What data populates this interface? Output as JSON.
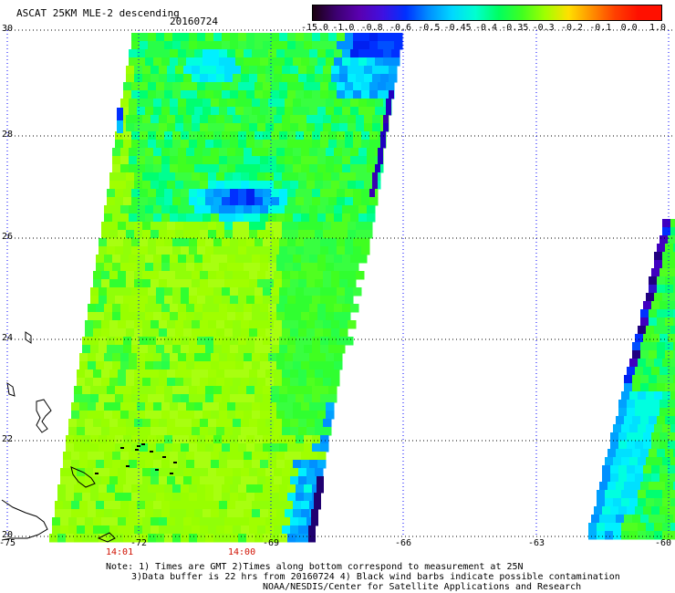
{
  "header": {
    "title": "ASCAT 25KM MLE-2 descending",
    "date": "20160724"
  },
  "colorbar": {
    "labels": [
      "-15.0",
      "-1.0",
      "-0.8",
      "-0.6",
      "-0.5",
      "-0.45",
      "-0.4",
      "-0.35",
      "-0.3",
      "-0.2",
      "-0.1",
      "0.0",
      "1.0"
    ],
    "colors": [
      "#1a0010",
      "#3c0070",
      "#5a00b0",
      "#4010e0",
      "#0030ff",
      "#0090ff",
      "#00d8ff",
      "#00ffd0",
      "#00ff60",
      "#40ff20",
      "#a0ff00",
      "#ffe000",
      "#ff9000",
      "#ff4000",
      "#ff1000"
    ]
  },
  "map": {
    "lat_labels": [
      "30",
      "28",
      "26",
      "24",
      "22",
      "20"
    ],
    "lon_labels": [
      "-75",
      "-72",
      "-69",
      "-66",
      "-63",
      "-60"
    ],
    "time_labels": [
      "14:01",
      "14:00"
    ],
    "gridline_color": "#0000ff"
  },
  "notes": [
    "Note: 1) Times are GMT 2)Times along bottom correspond to measurement at 25N",
    "3)Data buffer is 22 hrs from 20160724 4) Black wind barbs indicate possible contamination",
    "NOAA/NESDIS/Center for Satellite Applications and Research"
  ]
}
